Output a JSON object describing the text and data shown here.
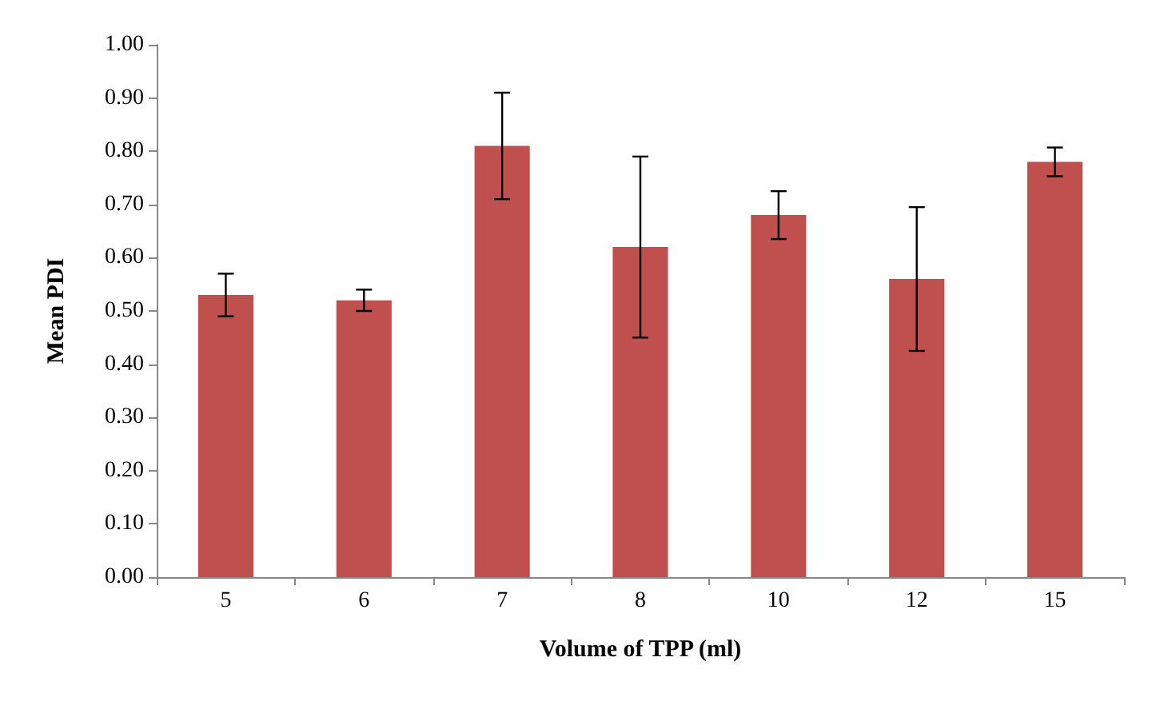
{
  "chart_data": {
    "type": "bar",
    "xlabel": "Volume of TPP (ml)",
    "ylabel": "Mean PDI",
    "categories": [
      "5",
      "6",
      "7",
      "8",
      "10",
      "12",
      "15"
    ],
    "values": [
      0.53,
      0.52,
      0.81,
      0.62,
      0.68,
      0.56,
      0.78
    ],
    "errors": [
      0.04,
      0.02,
      0.1,
      0.17,
      0.045,
      0.135,
      0.027
    ],
    "color": "#c0504d",
    "ylim": [
      0,
      1
    ],
    "yticks": [
      {
        "value": 0,
        "label": "0.00"
      },
      {
        "value": 0.1,
        "label": "0.10"
      },
      {
        "value": 0.2,
        "label": "0.20"
      },
      {
        "value": 0.3,
        "label": "0.30"
      },
      {
        "value": 0.4,
        "label": "0.40"
      },
      {
        "value": 0.5,
        "label": "0.50"
      },
      {
        "value": 0.6,
        "label": "0.60"
      },
      {
        "value": 0.7,
        "label": "0.70"
      },
      {
        "value": 0.8,
        "label": "0.80"
      },
      {
        "value": 0.9,
        "label": "0.90"
      },
      {
        "value": 1,
        "label": "1.00"
      }
    ],
    "grid": false
  }
}
